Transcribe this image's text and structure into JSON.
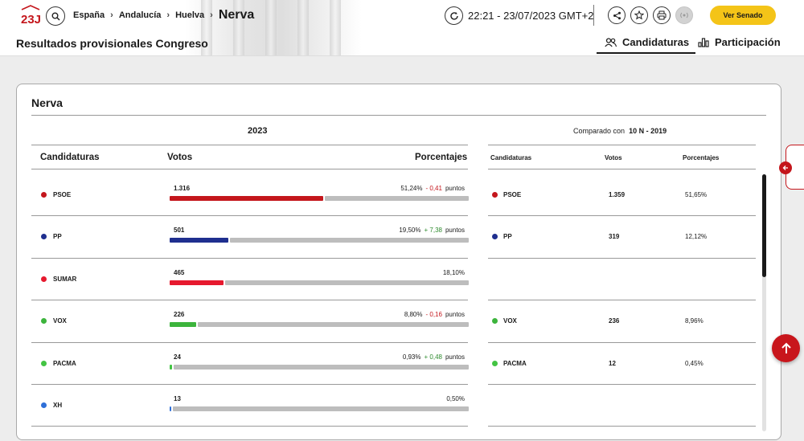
{
  "header": {
    "breadcrumb": [
      "España",
      "Andalucía",
      "Huelva"
    ],
    "current_location": "Nerva",
    "page_title": "Resultados provisionales Congreso",
    "timestamp": "22:21 - 23/07/2023 GMT+2",
    "senado_button": "Ver Senado",
    "tabs": [
      {
        "label": "Candidaturas",
        "active": true
      },
      {
        "label": "Participación",
        "active": false
      }
    ]
  },
  "results": {
    "location": "Nerva",
    "year": "2023",
    "headers": {
      "party": "Candidaturas",
      "votes": "Votos",
      "percent": "Porcentajes"
    },
    "points_word": "puntos",
    "rows": [
      {
        "party": "PSOE",
        "votes": "1.316",
        "percent": "51,24%",
        "change": "- 0,41",
        "change_sign": "neg",
        "share": 51.24,
        "color": "#c4161c"
      },
      {
        "party": "PP",
        "votes": "501",
        "percent": "19,50%",
        "change": "+ 7,38",
        "change_sign": "pos",
        "share": 19.5,
        "color": "#1f2f8f"
      },
      {
        "party": "SUMAR",
        "votes": "465",
        "percent": "18,10%",
        "change": "",
        "change_sign": "",
        "share": 18.1,
        "color": "#e6192e"
      },
      {
        "party": "VOX",
        "votes": "226",
        "percent": "8,80%",
        "change": "- 0,16",
        "change_sign": "neg",
        "share": 8.8,
        "color": "#3cb43c"
      },
      {
        "party": "PACMA",
        "votes": "24",
        "percent": "0,93%",
        "change": "+ 0,48",
        "change_sign": "pos",
        "share": 0.93,
        "color": "#43c443"
      },
      {
        "party": "XH",
        "votes": "13",
        "percent": "0,50%",
        "change": "",
        "change_sign": "",
        "share": 0.5,
        "color": "#2e6fd8"
      }
    ]
  },
  "comparison": {
    "label_prefix": "Comparado con",
    "label_election": "10 N - 2019",
    "headers": {
      "party": "Candidaturas",
      "votes": "Votos",
      "percent": "Porcentajes"
    },
    "rows": [
      {
        "party": "PSOE",
        "votes": "1.359",
        "percent": "51,65%",
        "color": "#c4161c"
      },
      {
        "party": "PP",
        "votes": "319",
        "percent": "12,12%",
        "color": "#1f2f8f"
      },
      {
        "party": "",
        "votes": "",
        "percent": "",
        "color": ""
      },
      {
        "party": "VOX",
        "votes": "236",
        "percent": "8,96%",
        "color": "#3cb43c"
      },
      {
        "party": "PACMA",
        "votes": "12",
        "percent": "0,45%",
        "color": "#43c443"
      },
      {
        "party": "",
        "votes": "",
        "percent": "",
        "color": ""
      }
    ]
  },
  "icons": {
    "logo": "23j-logo-icon",
    "search": "search-icon",
    "refresh": "refresh-icon",
    "share": "share-icon",
    "favorite": "star-icon",
    "print": "print-icon",
    "audio": "broadcast-icon",
    "candidaturas_tab": "users-icon",
    "participacion_tab": "bar-chart-icon",
    "side_panel": "arrow-left-icon",
    "scroll_top": "arrow-up-icon"
  }
}
